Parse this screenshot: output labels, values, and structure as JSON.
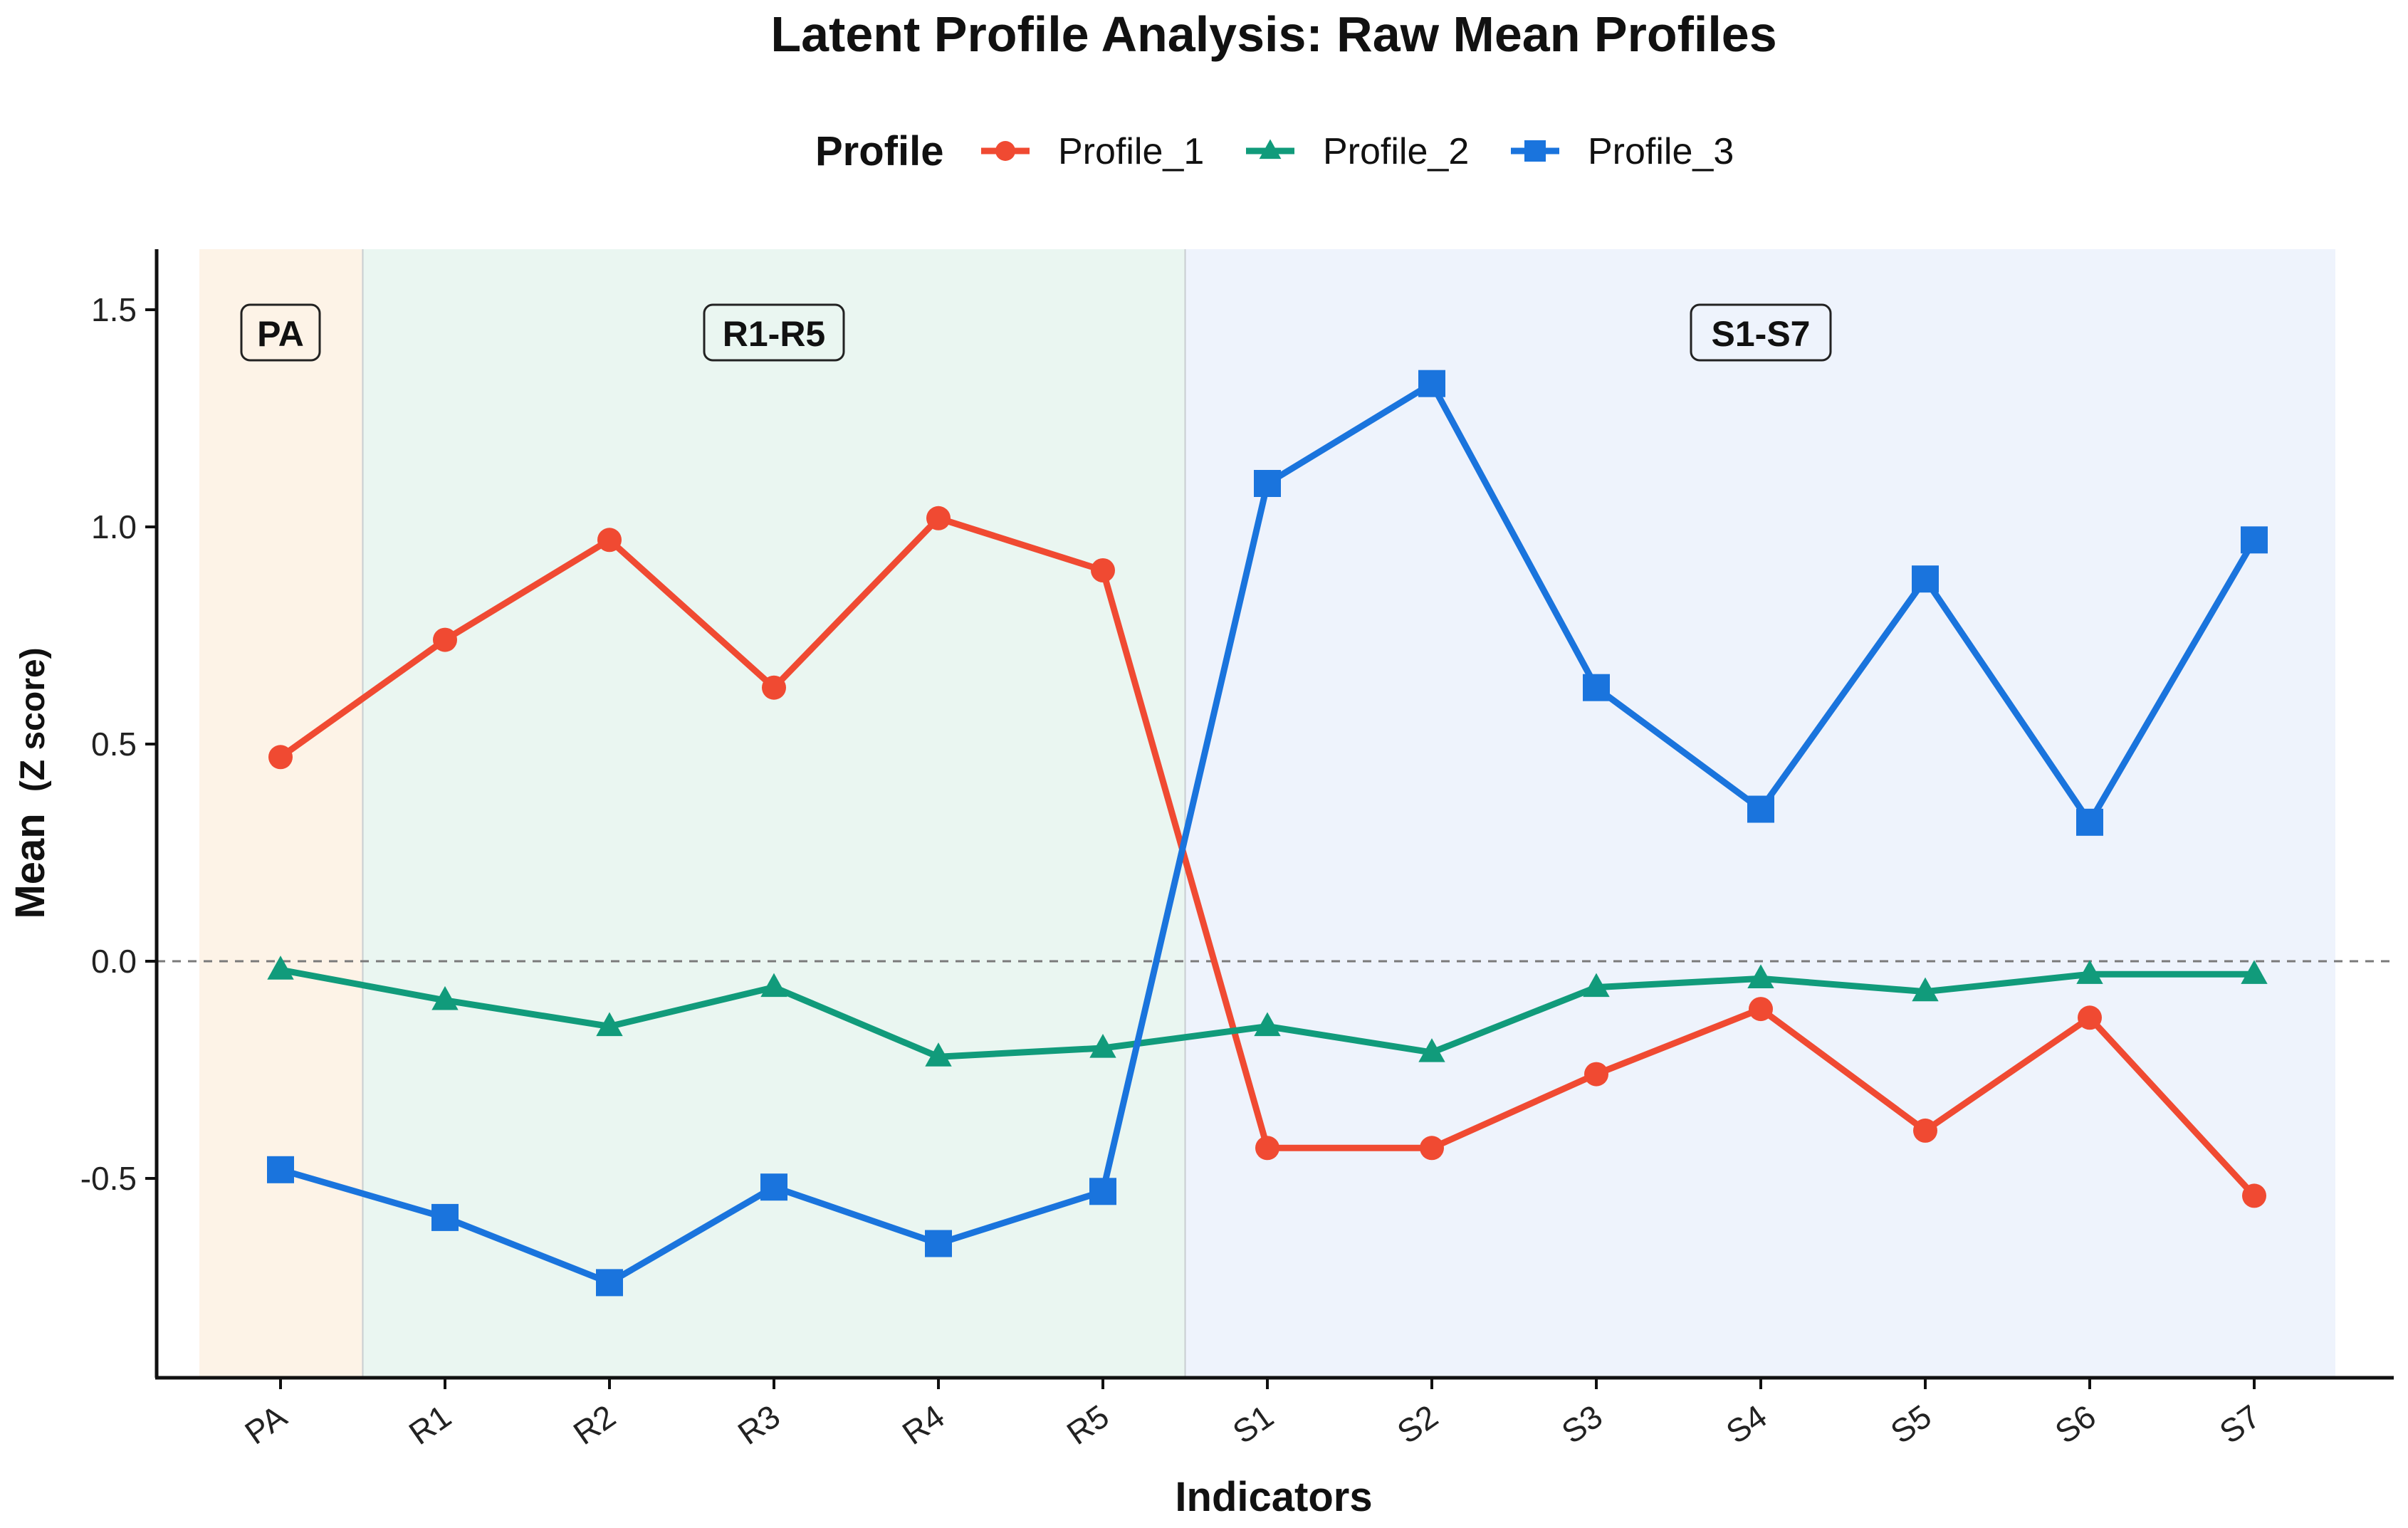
{
  "chart_data": {
    "type": "line",
    "title": "Latent Profile Analysis: Raw Mean Profiles",
    "xlabel": "Indicators",
    "ylabel_main": "Mean",
    "ylabel_sub": "(Z score)",
    "legend": {
      "title": "Profile",
      "position": "top"
    },
    "categories": [
      "PA",
      "R1",
      "R2",
      "R3",
      "R4",
      "R5",
      "S1",
      "S2",
      "S3",
      "S4",
      "S5",
      "S6",
      "S7"
    ],
    "ylim": [
      -0.95,
      1.62
    ],
    "yticks": [
      -0.5,
      0.0,
      0.5,
      1.0,
      1.5
    ],
    "ytick_labels": [
      "-0.5",
      "0.0",
      "0.5",
      "1.0",
      "1.5"
    ],
    "reference_line": 0,
    "grid": false,
    "regions": [
      {
        "label": "PA",
        "from": "PA",
        "to": "PA",
        "color": "#fdf3e7"
      },
      {
        "label": "R1-R5",
        "from": "R1",
        "to": "R5",
        "color": "#eaf6f1"
      },
      {
        "label": "S1-S7",
        "from": "S1",
        "to": "S7",
        "color": "#eef3fc"
      }
    ],
    "series": [
      {
        "name": "Profile_1",
        "color": "#f04a32",
        "marker": "circle",
        "values": [
          0.47,
          0.74,
          0.97,
          0.63,
          1.02,
          0.9,
          -0.43,
          -0.43,
          -0.26,
          -0.11,
          -0.39,
          -0.13,
          -0.54
        ]
      },
      {
        "name": "Profile_2",
        "color": "#119b7b",
        "marker": "triangle",
        "values": [
          -0.02,
          -0.09,
          -0.15,
          -0.06,
          -0.22,
          -0.2,
          -0.15,
          -0.21,
          -0.06,
          -0.04,
          -0.07,
          -0.03,
          -0.03
        ]
      },
      {
        "name": "Profile_3",
        "color": "#1a74dd",
        "marker": "square",
        "values": [
          -0.48,
          -0.59,
          -0.74,
          -0.52,
          -0.65,
          -0.53,
          1.1,
          1.33,
          0.63,
          0.35,
          0.88,
          0.32,
          0.97
        ]
      }
    ]
  }
}
